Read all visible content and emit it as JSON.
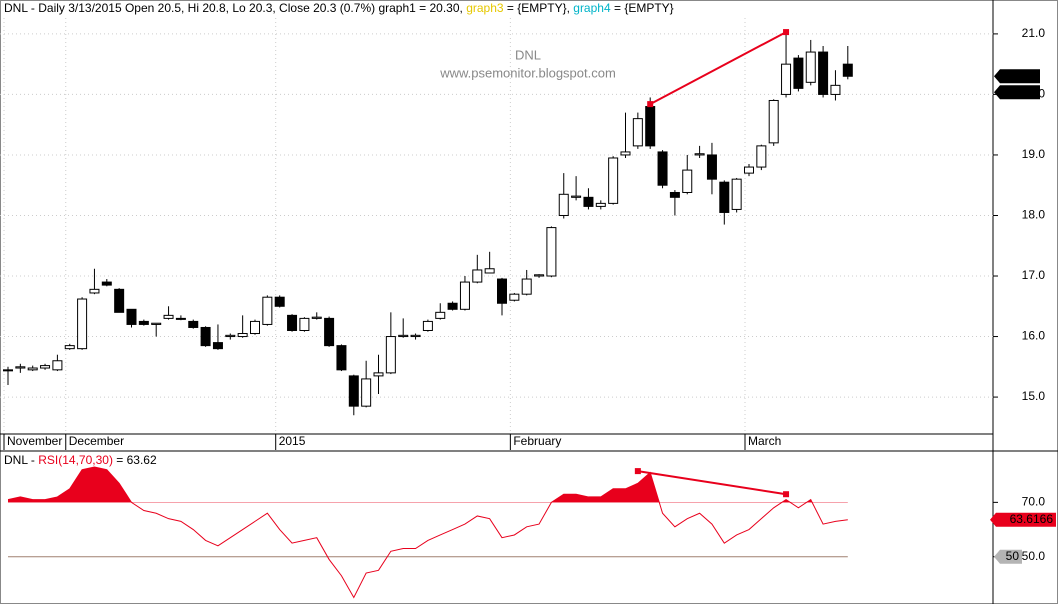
{
  "chart_data": [
    {
      "type": "candlestick",
      "header_parts": [
        {
          "text": "DNL - Daily 3/13/2015 Open 20.5, Hi 20.8, Lo 20.3, Close 20.3 (0.7%) graph1 = 20.30, ",
          "color": "#000000"
        },
        {
          "text": "graph3",
          "color": "#e6c800"
        },
        {
          "text": " = {EMPTY}, ",
          "color": "#000000"
        },
        {
          "text": "graph4",
          "color": "#00b4c8"
        },
        {
          "text": " = {EMPTY}",
          "color": "#000000"
        }
      ],
      "watermark": [
        "DNL",
        "www.psemonitor.blogspot.com"
      ],
      "categories": [
        "November",
        null,
        null,
        null,
        null,
        "December",
        null,
        null,
        null,
        null,
        null,
        null,
        null,
        null,
        null,
        null,
        null,
        null,
        null,
        null,
        null,
        null,
        "2015",
        null,
        null,
        null,
        null,
        null,
        null,
        null,
        null,
        null,
        null,
        null,
        null,
        null,
        null,
        null,
        null,
        null,
        null,
        "February",
        null,
        null,
        null,
        null,
        null,
        null,
        null,
        null,
        null,
        null,
        null,
        null,
        null,
        null,
        null,
        null,
        null,
        null,
        "March",
        null,
        null,
        null,
        null,
        null,
        null,
        null,
        null
      ],
      "open": [
        15.45,
        15.48,
        15.45,
        15.48,
        15.45,
        15.8,
        15.8,
        16.72,
        16.9,
        16.78,
        16.45,
        16.25,
        16.2,
        16.3,
        16.3,
        16.25,
        16.15,
        15.9,
        16.0,
        16.0,
        16.05,
        16.2,
        16.65,
        16.35,
        16.1,
        16.3,
        16.3,
        15.85,
        15.35,
        14.85,
        15.35,
        15.4,
        16.0,
        16.0,
        16.1,
        16.3,
        16.55,
        16.45,
        16.9,
        17.05,
        16.95,
        16.6,
        16.7,
        17.0,
        17.0,
        18.0,
        18.3,
        18.3,
        18.15,
        18.2,
        19.0,
        19.15,
        19.8,
        19.05,
        18.38,
        18.38,
        19.0,
        19.0,
        18.55,
        18.1,
        18.7,
        18.8,
        19.2,
        20.0,
        20.6,
        20.2,
        20.7,
        20.0,
        20.5
      ],
      "high": [
        15.5,
        15.55,
        15.52,
        15.55,
        15.7,
        15.88,
        16.65,
        17.12,
        16.95,
        16.8,
        16.45,
        16.28,
        16.22,
        16.5,
        16.35,
        16.28,
        16.17,
        16.2,
        16.05,
        16.35,
        16.28,
        16.68,
        16.68,
        16.37,
        16.32,
        16.4,
        16.33,
        15.87,
        15.37,
        15.6,
        15.7,
        16.4,
        16.3,
        16.05,
        16.28,
        16.55,
        16.58,
        17.0,
        17.35,
        17.4,
        16.97,
        16.72,
        17.1,
        17.03,
        17.82,
        18.7,
        18.65,
        18.45,
        18.25,
        18.98,
        19.7,
        19.7,
        19.95,
        19.08,
        18.42,
        19.0,
        19.15,
        19.2,
        18.58,
        18.62,
        18.85,
        19.17,
        19.92,
        21.0,
        20.65,
        20.9,
        20.8,
        20.4,
        20.8
      ],
      "low": [
        15.2,
        15.4,
        15.43,
        15.45,
        15.43,
        15.78,
        15.78,
        16.7,
        16.83,
        16.4,
        16.15,
        16.18,
        16.0,
        16.28,
        16.27,
        16.13,
        15.83,
        15.78,
        15.95,
        15.98,
        16.03,
        16.18,
        16.48,
        16.08,
        16.08,
        16.28,
        15.83,
        15.43,
        14.7,
        14.83,
        15.05,
        15.38,
        15.98,
        15.95,
        16.08,
        16.28,
        16.43,
        16.43,
        16.88,
        17.05,
        16.35,
        16.58,
        16.68,
        16.97,
        16.98,
        17.95,
        18.25,
        18.1,
        18.1,
        18.18,
        18.95,
        19.1,
        19.1,
        18.45,
        18.0,
        18.35,
        18.95,
        18.35,
        17.85,
        18.05,
        18.65,
        18.75,
        19.15,
        19.95,
        20.05,
        20.15,
        19.95,
        19.9,
        20.25
      ],
      "close": [
        15.45,
        15.5,
        15.48,
        15.52,
        15.6,
        15.85,
        16.62,
        16.78,
        16.85,
        16.4,
        16.2,
        16.2,
        16.22,
        16.35,
        16.3,
        16.15,
        15.85,
        15.8,
        16.02,
        16.05,
        16.25,
        16.65,
        16.5,
        16.1,
        16.3,
        16.32,
        15.85,
        15.45,
        14.85,
        15.3,
        15.4,
        16.0,
        16.02,
        16.02,
        16.25,
        16.4,
        16.45,
        16.9,
        17.1,
        17.12,
        16.55,
        16.7,
        16.95,
        17.02,
        17.8,
        18.35,
        18.32,
        18.15,
        18.2,
        18.95,
        19.05,
        19.6,
        19.15,
        18.5,
        18.3,
        18.75,
        19.02,
        18.6,
        18.05,
        18.6,
        18.8,
        19.15,
        19.9,
        20.5,
        20.1,
        20.7,
        20.0,
        20.15,
        20.3
      ],
      "up_color": "#ffffff",
      "down_color": "#000000",
      "ylim": [
        14.39,
        21.56
      ],
      "yticks": [
        {
          "value": 15,
          "label": "15.0"
        },
        {
          "value": 16,
          "label": "16.0"
        },
        {
          "value": 17,
          "label": "17.0"
        },
        {
          "value": 18,
          "label": "18.0"
        },
        {
          "value": 19,
          "label": "19.0"
        },
        {
          "value": 20,
          "label": "20.0"
        },
        {
          "value": 21,
          "label": "21.0"
        }
      ],
      "grid": true,
      "last_labels": [
        {
          "value": 20.3,
          "label": "20.3"
        },
        {
          "value": 20.3,
          "label": "20.3"
        }
      ],
      "trendline": {
        "x": [
          52,
          63
        ],
        "y": [
          19.84,
          21.03
        ],
        "color": "#e8001c"
      }
    },
    {
      "type": "line",
      "title_parts": [
        {
          "text": "DNL - ",
          "color": "#000000"
        },
        {
          "text": "RSI(14,70,30)",
          "color": "#e8001c"
        },
        {
          "text": " = 63.62",
          "color": "#000000"
        }
      ],
      "series": [
        {
          "name": "RSI(14,70,30)",
          "color": "#e8001c",
          "values": [
            71,
            72,
            71,
            71,
            72,
            75,
            82,
            83,
            82,
            77,
            70,
            67,
            66,
            64,
            63,
            60,
            56,
            54,
            57,
            60,
            63,
            66,
            60,
            55,
            56,
            57,
            49,
            43,
            35,
            44,
            45,
            52,
            53,
            53,
            56,
            58,
            60,
            62,
            65,
            64,
            57,
            58,
            61,
            62,
            70,
            73,
            73,
            72,
            72,
            75,
            75,
            77,
            81,
            66,
            61,
            64,
            66,
            62,
            55,
            58,
            60,
            64,
            68,
            71,
            68,
            71,
            62,
            63,
            63.6166
          ]
        }
      ],
      "fill_above": 70,
      "hline": 50,
      "ylim": [
        32.6,
        88.9
      ],
      "yticks": [
        {
          "value": 50,
          "label": "50.0"
        },
        {
          "value": 70,
          "label": "70.0"
        }
      ],
      "last_labels": [
        {
          "value": 63.6166,
          "label": "63.6166",
          "color": "#e8001c"
        },
        {
          "value": 50,
          "label": "50",
          "color": "#b4b4b4"
        }
      ],
      "trendline": {
        "x": [
          51,
          63
        ],
        "y": [
          81.5,
          73
        ],
        "color": "#e8001c"
      }
    }
  ]
}
